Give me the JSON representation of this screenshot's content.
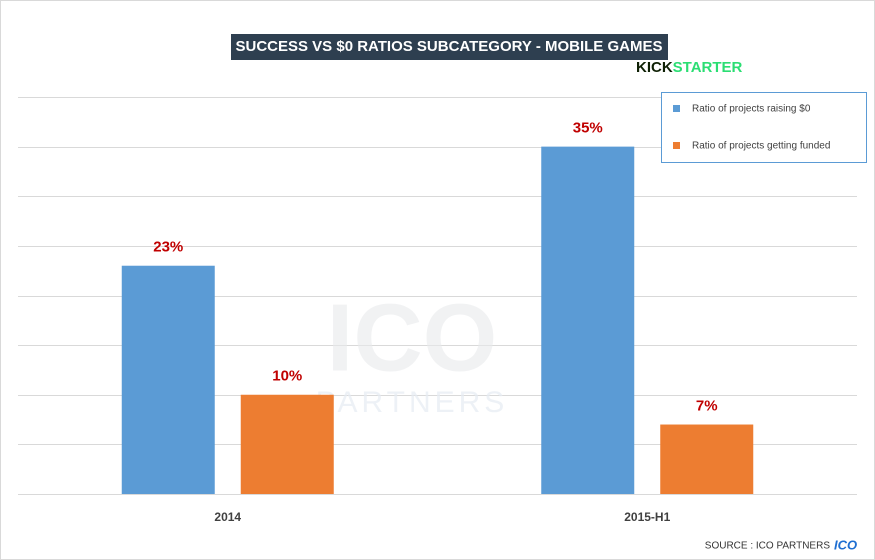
{
  "chart_data": {
    "type": "bar",
    "title": "SUCCESS VS $0 RATIOS SUBCATEGORY - MOBILE GAMES",
    "logo": [
      "KICK",
      "STARTER"
    ],
    "watermark": [
      "ICO",
      "PARTNERS"
    ],
    "source": "SOURCE : ICO PARTNERS",
    "source_logo": "ICO",
    "categories": [
      "2014",
      "2015-H1"
    ],
    "series": [
      {
        "name": "Ratio of projects raising $0",
        "color": "#5b9bd5",
        "values": [
          23,
          35
        ],
        "value_labels": [
          "23%",
          "35%"
        ]
      },
      {
        "name": "Ratio of projects getting funded",
        "color": "#ed7d31",
        "values": [
          10,
          7
        ],
        "value_labels": [
          "10%",
          "7%"
        ]
      }
    ],
    "value_label_color": "#c00000",
    "ylim": [
      0,
      40
    ],
    "yticks": [
      0,
      5,
      10,
      15,
      20,
      25,
      30,
      35,
      40
    ],
    "ytick_labels": false,
    "grid": true,
    "legend": "top-right"
  }
}
